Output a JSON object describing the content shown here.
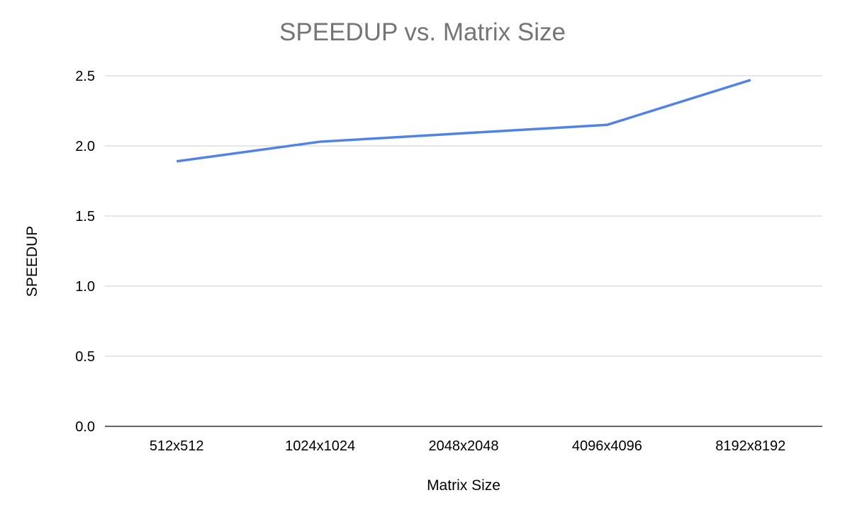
{
  "chart_data": {
    "type": "line",
    "title": "SPEEDUP vs. Matrix Size",
    "xlabel": "Matrix Size",
    "ylabel": "SPEEDUP",
    "categories": [
      "512x512",
      "1024x1024",
      "2048x2048",
      "4096x4096",
      "8192x8192"
    ],
    "series": [
      {
        "values": [
          1.89,
          2.03,
          2.09,
          2.15,
          2.47
        ],
        "color": "#5083e3"
      }
    ],
    "ylim": [
      0,
      2.5
    ],
    "yticks": [
      "0.0",
      "0.5",
      "1.0",
      "1.5",
      "2.0",
      "2.5"
    ],
    "grid": true,
    "legend": "none"
  }
}
